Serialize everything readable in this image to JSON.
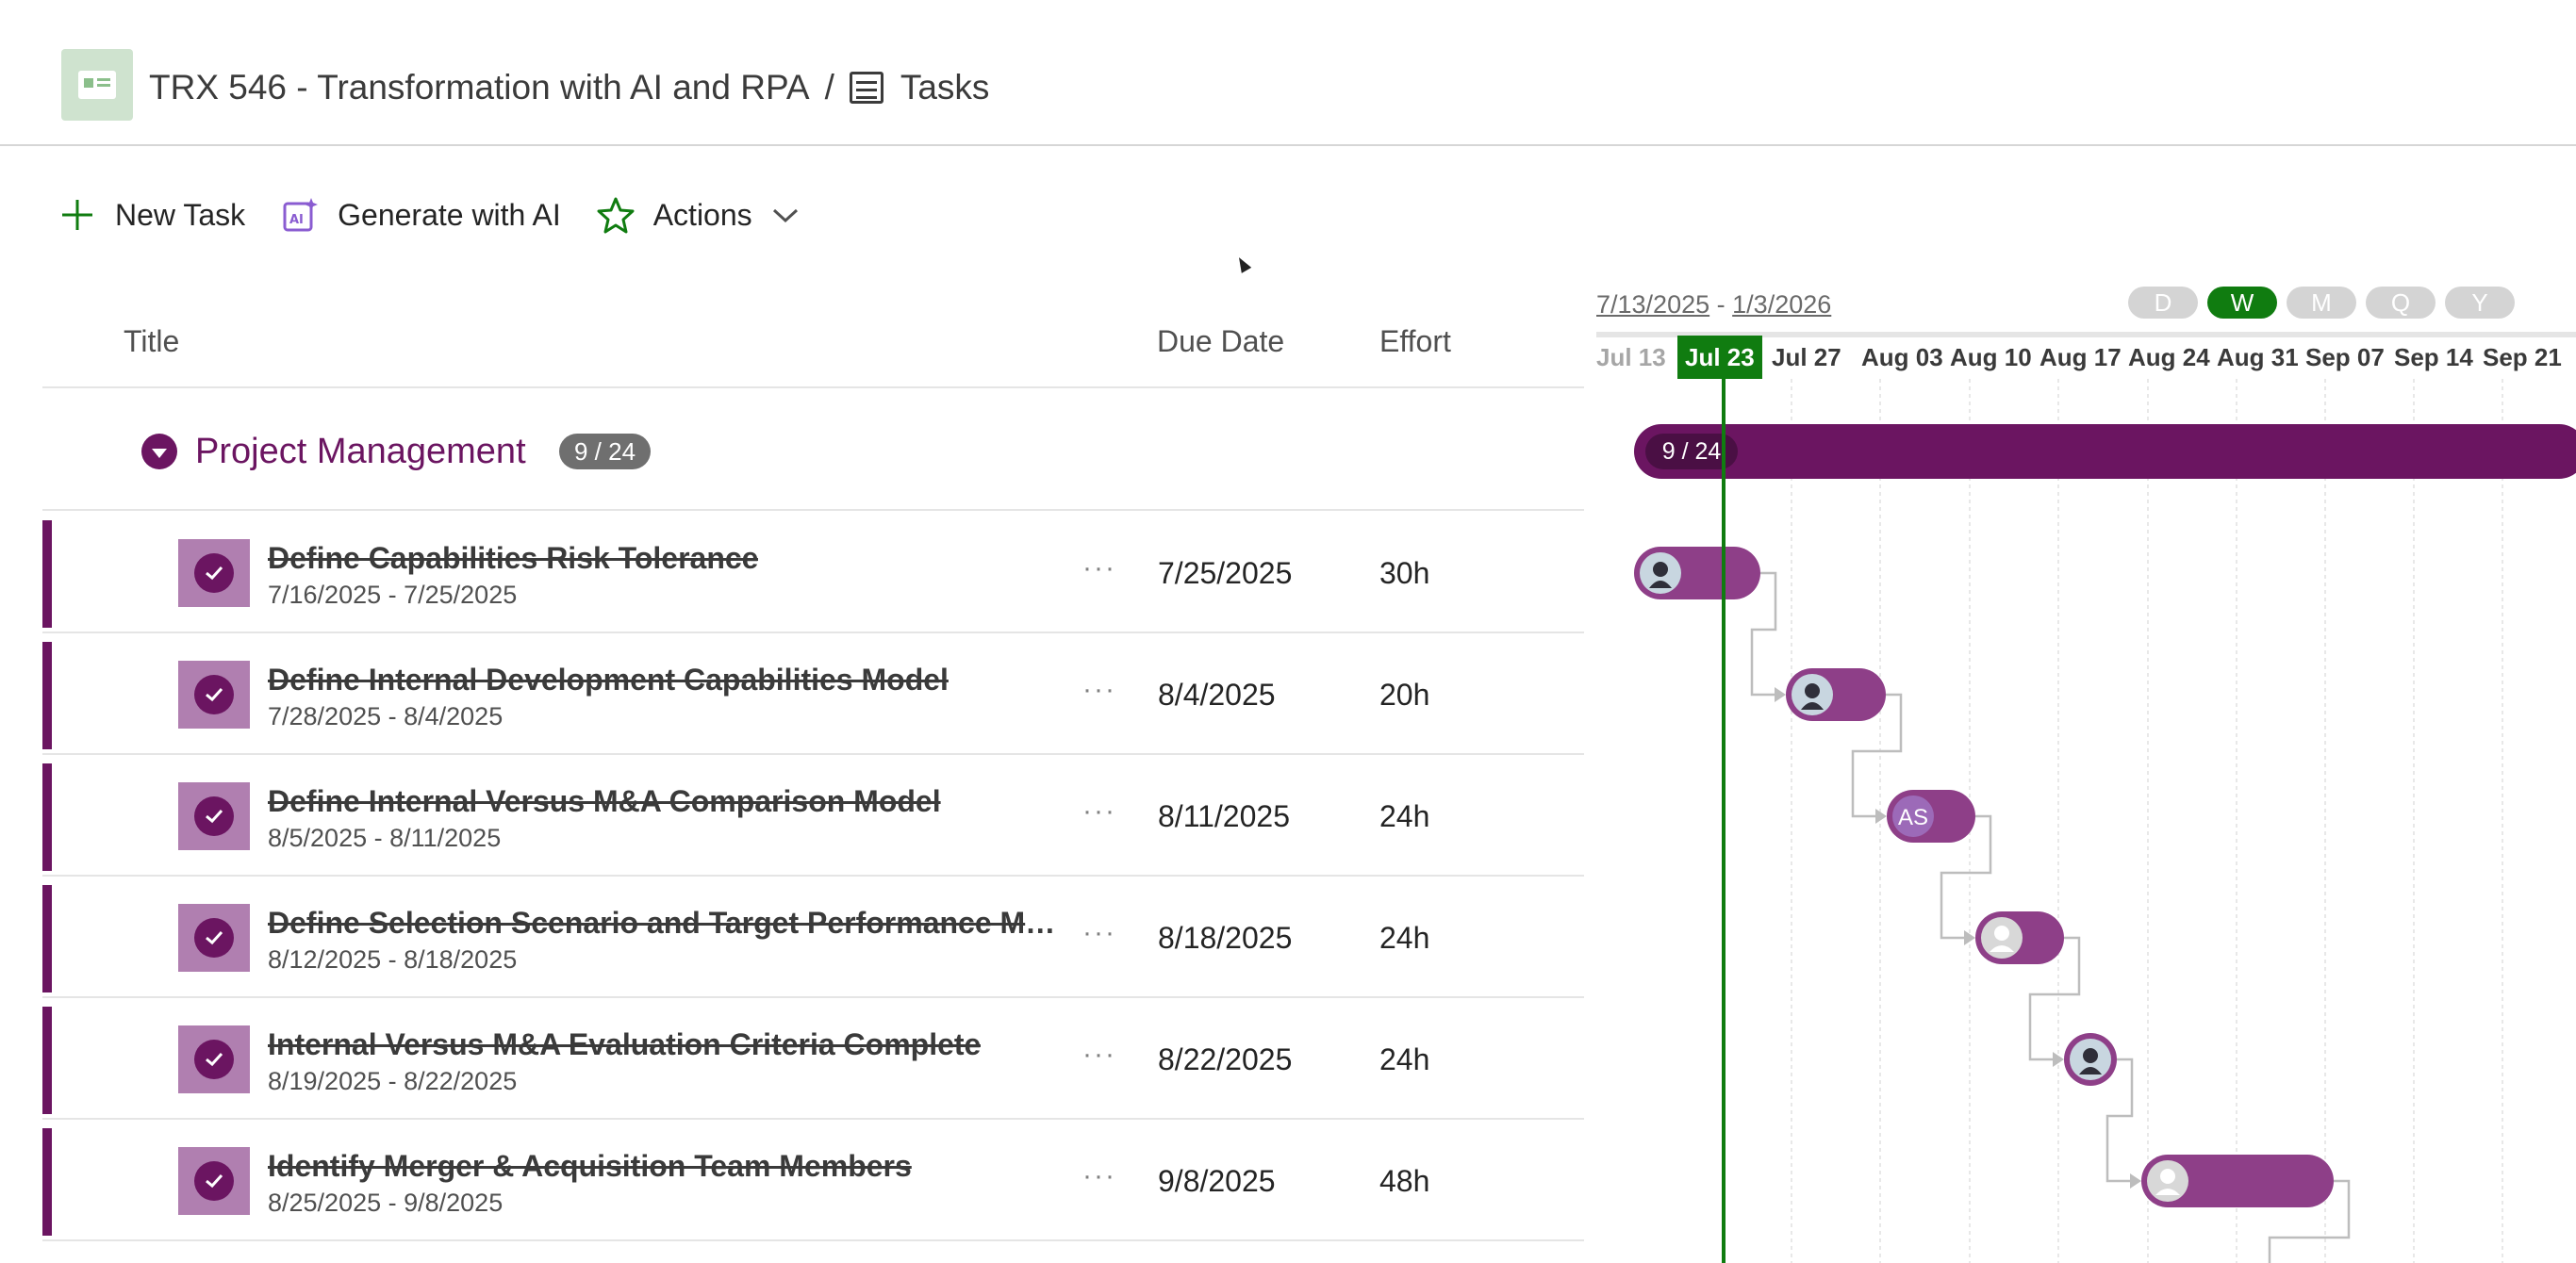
{
  "header": {
    "app_icon": "plan-icon",
    "project_title": "TRX 546 - Transformation with AI and RPA",
    "separator": "/",
    "view_icon": "tasks-board-icon",
    "view_name": "Tasks"
  },
  "toolbar": {
    "new_task": "New Task",
    "generate_ai": "Generate with AI",
    "actions": "Actions"
  },
  "columns": {
    "title": "Title",
    "due_date": "Due Date",
    "effort": "Effort"
  },
  "group": {
    "name": "Project Management",
    "count": "9 / 24",
    "color": "#6b1561"
  },
  "tasks": [
    {
      "title": "Define Capabilities Risk Tolerance",
      "range": "7/16/2025 - 7/25/2025",
      "more": "···",
      "due": "7/25/2025",
      "effort": "30h"
    },
    {
      "title": "Define Internal Development Capabilities Model",
      "range": "7/28/2025 - 8/4/2025",
      "more": "···",
      "due": "8/4/2025",
      "effort": "20h"
    },
    {
      "title": "Define Internal Versus M&A Comparison Model",
      "range": "8/5/2025 - 8/11/2025",
      "more": "···",
      "due": "8/11/2025",
      "effort": "24h"
    },
    {
      "title": "Define Selection Scenario and Target Performance Me...",
      "range": "8/12/2025 - 8/18/2025",
      "more": "···",
      "due": "8/18/2025",
      "effort": "24h"
    },
    {
      "title": "Internal Versus M&A Evaluation Criteria Complete",
      "range": "8/19/2025 - 8/22/2025",
      "more": "···",
      "due": "8/22/2025",
      "effort": "24h"
    },
    {
      "title": "Identify Merger & Acquisition Team Members",
      "range": "8/25/2025 - 9/8/2025",
      "more": "···",
      "due": "9/8/2025",
      "effort": "48h"
    }
  ],
  "gantt": {
    "range_start": "7/13/2025",
    "range_sep": "-",
    "range_end": "1/3/2026",
    "scales": [
      "D",
      "W",
      "M",
      "Q",
      "Y"
    ],
    "active_scale": "W",
    "weeks": [
      "Jul 13",
      "Jul 23",
      "Jul 27",
      "Aug 03",
      "Aug 10",
      "Aug 17",
      "Aug 24",
      "Aug 31",
      "Sep 07",
      "Sep 14",
      "Sep 21"
    ],
    "current_week": "Jul 23",
    "group_bar_label": "9 / 24",
    "bar_assignee_initials": "AS",
    "colors": {
      "bar": "#8e3f88",
      "group_bar": "#6b1561",
      "today": "#107c10"
    }
  }
}
